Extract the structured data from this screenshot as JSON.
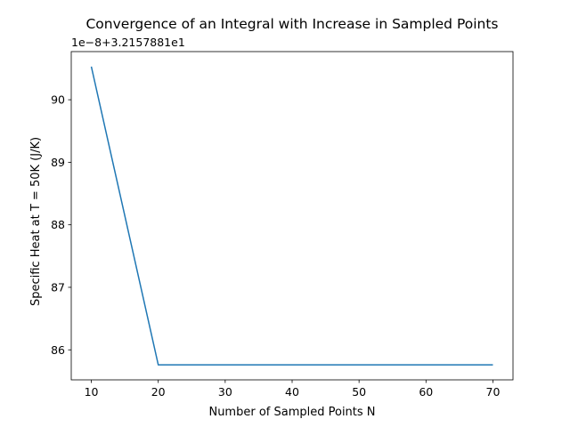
{
  "chart_data": {
    "type": "line",
    "title": "Convergence of an Integral with Increase in Sampled Points",
    "xlabel": "Number of Sampled Points N",
    "ylabel": "Specific Heat at T = 50K (J/K)",
    "offset_text": "1e−8+3.2157881e1",
    "x": [
      10,
      20,
      30,
      40,
      50,
      60,
      70
    ],
    "series": [
      {
        "values": [
          90.53,
          85.76,
          85.76,
          85.76,
          85.76,
          85.76,
          85.76
        ]
      }
    ],
    "xlim": [
      7,
      73
    ],
    "ylim": [
      85.52,
      90.77
    ],
    "xticks": [
      10,
      20,
      30,
      40,
      50,
      60,
      70
    ],
    "yticks": [
      86,
      87,
      88,
      89,
      90
    ],
    "line_color": "#1f77b4",
    "grid": false,
    "legend": "none"
  }
}
